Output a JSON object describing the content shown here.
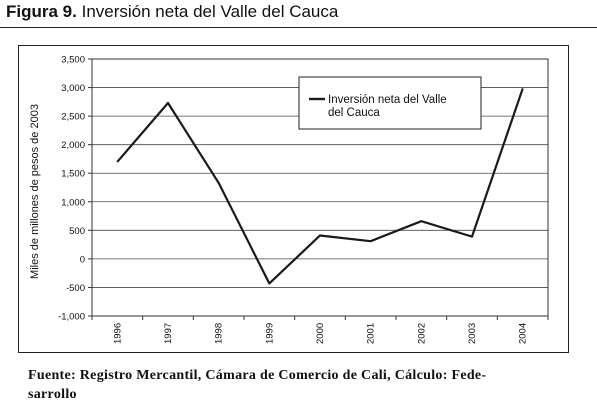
{
  "figure": {
    "number_label": "Figura 9.",
    "title_text": "Inversión neta del Valle del Cauca"
  },
  "source": {
    "line1": "Fuente: Registro Mercantil, Cámara de Comercio de Cali, Cálculo: Fede-",
    "line2": "sarrollo"
  },
  "chart_data": {
    "type": "line",
    "title": "",
    "xlabel": "",
    "ylabel": "Miles de millones de pesos de 2003",
    "categories": [
      "1996",
      "1997",
      "1998",
      "1999",
      "2000",
      "2001",
      "2002",
      "2003",
      "2004"
    ],
    "series": [
      {
        "name": "Inversión neta del Valle del Cauca",
        "values": [
          1700,
          2730,
          1330,
          -430,
          410,
          310,
          660,
          390,
          2980
        ],
        "color": "#1a1a1a"
      }
    ],
    "ylim": [
      -1000,
      3500
    ],
    "yticks": [
      -1000,
      -500,
      0,
      500,
      1000,
      1500,
      2000,
      2500,
      3000,
      3500
    ],
    "ytick_labels": [
      "-1,000",
      "-500",
      "0",
      "500",
      "1,000",
      "1,500",
      "2,000",
      "2,500",
      "3,000",
      "3,500"
    ],
    "legend_label_line1": "Inversión neta del Valle",
    "legend_label_line2": "del Cauca",
    "legend_position": "top-right",
    "grid": true
  }
}
